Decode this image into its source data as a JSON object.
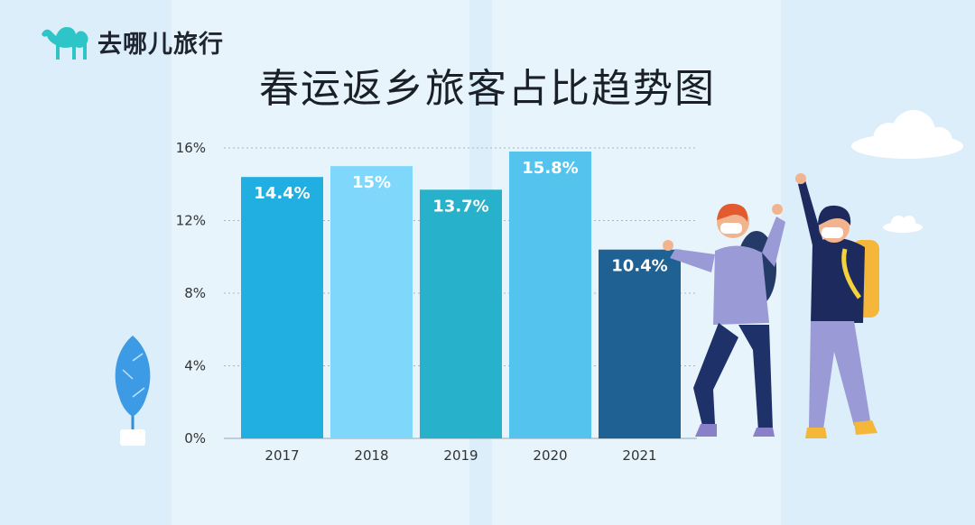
{
  "brand": {
    "name": "去哪儿旅行"
  },
  "chart_data": {
    "type": "bar",
    "title": "春运返乡旅客占比趋势图",
    "categories": [
      "2017",
      "2018",
      "2019",
      "2020",
      "2021"
    ],
    "values": [
      14.4,
      15,
      13.7,
      15.8,
      10.4
    ],
    "value_labels": [
      "14.4%",
      "15%",
      "13.7%",
      "15.8%",
      "10.4%"
    ],
    "bar_colors": [
      "#21aee0",
      "#7fd8fb",
      "#27b1cb",
      "#54c3ee",
      "#1f6192"
    ],
    "yticks": [
      "0%",
      "4%",
      "8%",
      "12%",
      "16%"
    ],
    "ytick_values": [
      0,
      4,
      8,
      12,
      16
    ],
    "ylim": [
      0,
      16
    ],
    "grid": true,
    "xlabel": "",
    "ylabel": ""
  }
}
